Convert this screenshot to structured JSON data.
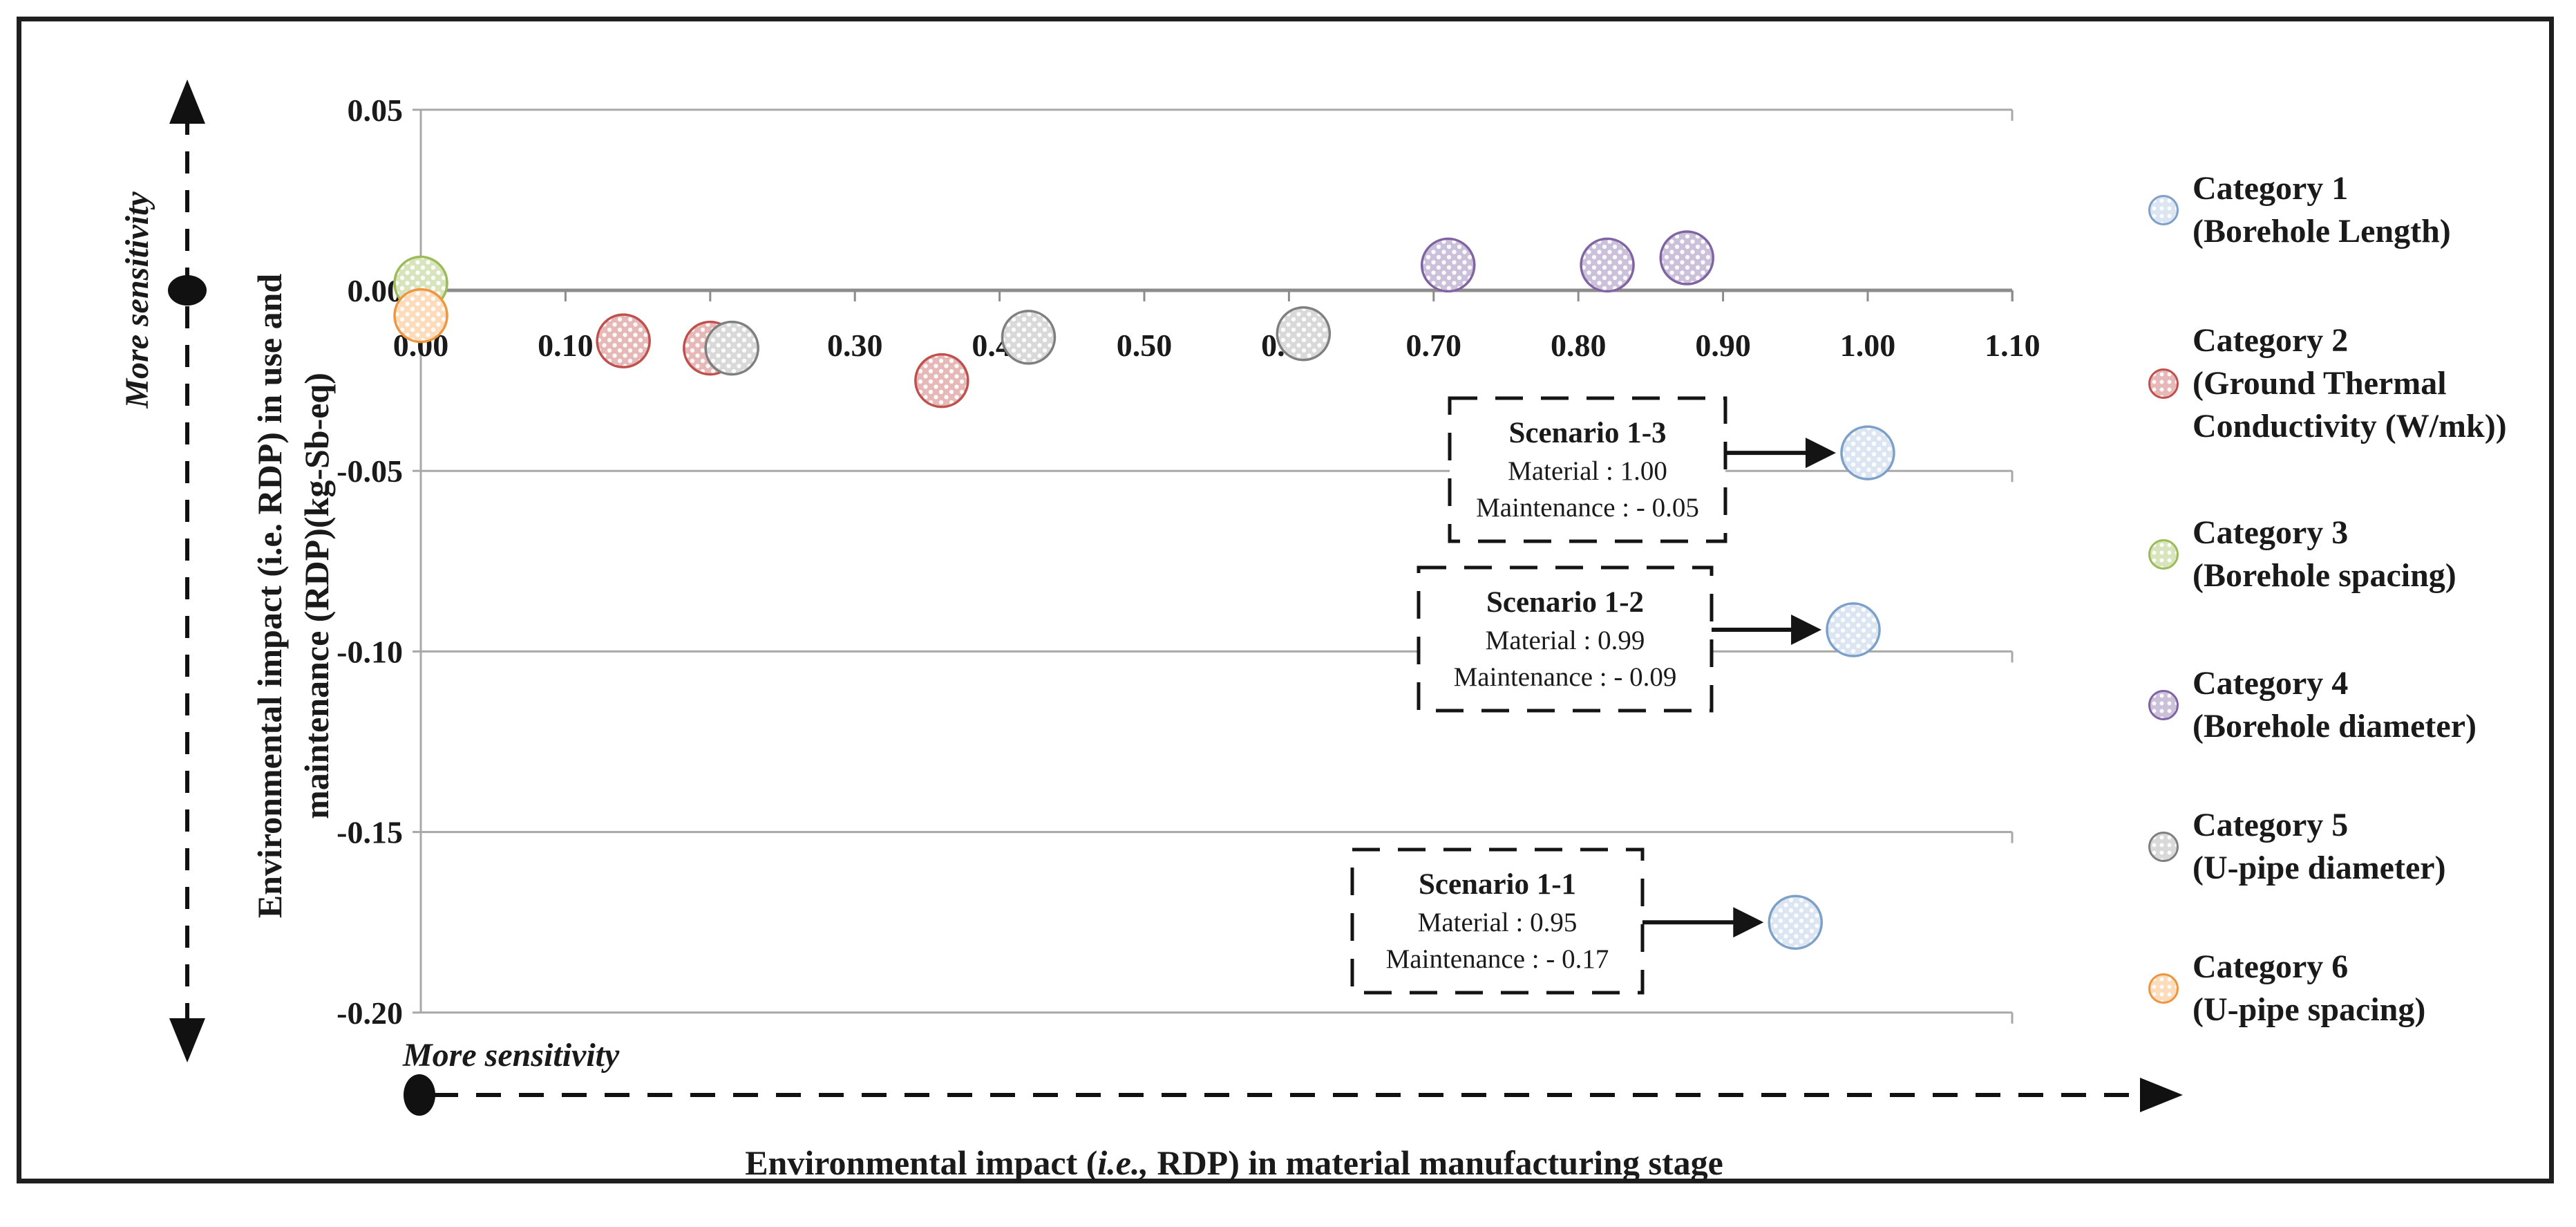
{
  "figure": {
    "sensitivity_vertical_label": "More sensitivity",
    "sensitivity_horizontal_label": "More sensitivity"
  },
  "chart_data": {
    "type": "scatter",
    "title": "",
    "xlabel_segments": {
      "prefix": "Environmental impact (",
      "italic": "i.e.,",
      "suffix": " RDP) in material manufacturing stage"
    },
    "ylabel_lines": [
      "Environmental impact (i.e. RDP) in use and",
      "maintenance (RDP)(kg-Sb-eq)"
    ],
    "xlim": [
      0.0,
      1.1
    ],
    "ylim": [
      -0.2,
      0.05
    ],
    "grid": "horizontal",
    "legend_position": "right",
    "x_ticks": [
      {
        "value": 0.0,
        "label": "0.00"
      },
      {
        "value": 0.1,
        "label": "0.10"
      },
      {
        "value": 0.2,
        "label": "0.20"
      },
      {
        "value": 0.3,
        "label": "0.30"
      },
      {
        "value": 0.4,
        "label": "0.40"
      },
      {
        "value": 0.5,
        "label": "0.50"
      },
      {
        "value": 0.6,
        "label": "0.60"
      },
      {
        "value": 0.7,
        "label": "0.70"
      },
      {
        "value": 0.8,
        "label": "0.80"
      },
      {
        "value": 0.9,
        "label": "0.90"
      },
      {
        "value": 1.0,
        "label": "1.00"
      },
      {
        "value": 1.1,
        "label": "1.10"
      }
    ],
    "y_ticks": [
      {
        "value": 0.05,
        "label": "0.05"
      },
      {
        "value": 0.0,
        "label": "0.00"
      },
      {
        "value": -0.05,
        "label": "-0.05"
      },
      {
        "value": -0.1,
        "label": "-0.10"
      },
      {
        "value": -0.15,
        "label": "-0.15"
      },
      {
        "value": -0.2,
        "label": "-0.20"
      }
    ],
    "series": [
      {
        "name": "Category 1",
        "description": "(Borehole Length)",
        "legend_lines": [
          "Category 1",
          "(Borehole Length)"
        ],
        "stroke": "#7da0c8",
        "fill": "#dce6f2",
        "points": [
          {
            "x": 1.0,
            "y": -0.045
          },
          {
            "x": 0.99,
            "y": -0.094
          },
          {
            "x": 0.95,
            "y": -0.175
          }
        ]
      },
      {
        "name": "Category 2",
        "description": "(Ground Thermal Conductivity (W/mk))",
        "legend_lines": [
          "Category 2",
          "(Ground Thermal",
          "Conductivity (W/mk))"
        ],
        "stroke": "#c0504d",
        "fill": "#e6b9b8",
        "points": [
          {
            "x": 0.14,
            "y": -0.014
          },
          {
            "x": 0.2,
            "y": -0.016
          },
          {
            "x": 0.36,
            "y": -0.025
          }
        ]
      },
      {
        "name": "Category 3",
        "description": "(Borehole spacing)",
        "legend_lines": [
          "Category 3",
          "(Borehole spacing)"
        ],
        "stroke": "#9bbb59",
        "fill": "#d7e4bc",
        "points": [
          {
            "x": 0.0,
            "y": 0.002
          }
        ]
      },
      {
        "name": "Category 4",
        "description": "(Borehole diameter)",
        "legend_lines": [
          "Category 4",
          "(Borehole diameter)"
        ],
        "stroke": "#8064a2",
        "fill": "#ccc1da",
        "points": [
          {
            "x": 0.71,
            "y": 0.007
          },
          {
            "x": 0.82,
            "y": 0.007
          },
          {
            "x": 0.875,
            "y": 0.009
          }
        ]
      },
      {
        "name": "Category 5",
        "description": "(U-pipe diameter)",
        "legend_lines": [
          "Category 5",
          "(U-pipe diameter)"
        ],
        "stroke": "#7f7f7f",
        "fill": "#d9d9d9",
        "points": [
          {
            "x": 0.215,
            "y": -0.016
          },
          {
            "x": 0.42,
            "y": -0.013
          },
          {
            "x": 0.61,
            "y": -0.012
          }
        ]
      },
      {
        "name": "Category 6",
        "description": "(U-pipe spacing)",
        "legend_lines": [
          "Category 6",
          "(U-pipe spacing)"
        ],
        "stroke": "#f0953f",
        "fill": "#fcdcbb",
        "points": [
          {
            "x": 0.0,
            "y": -0.007
          }
        ]
      }
    ],
    "annotations": [
      {
        "title": "Scenario 1-3",
        "lines": [
          "Material : 1.00",
          "Maintenance : - 0.05"
        ],
        "target": {
          "x": 1.0,
          "y": -0.045
        }
      },
      {
        "title": "Scenario 1-2",
        "lines": [
          "Material : 0.99",
          "Maintenance : - 0.09"
        ],
        "target": {
          "x": 0.99,
          "y": -0.094
        }
      },
      {
        "title": "Scenario 1-1",
        "lines": [
          "Material : 0.95",
          "Maintenance : - 0.17"
        ],
        "target": {
          "x": 0.95,
          "y": -0.175
        }
      }
    ]
  }
}
